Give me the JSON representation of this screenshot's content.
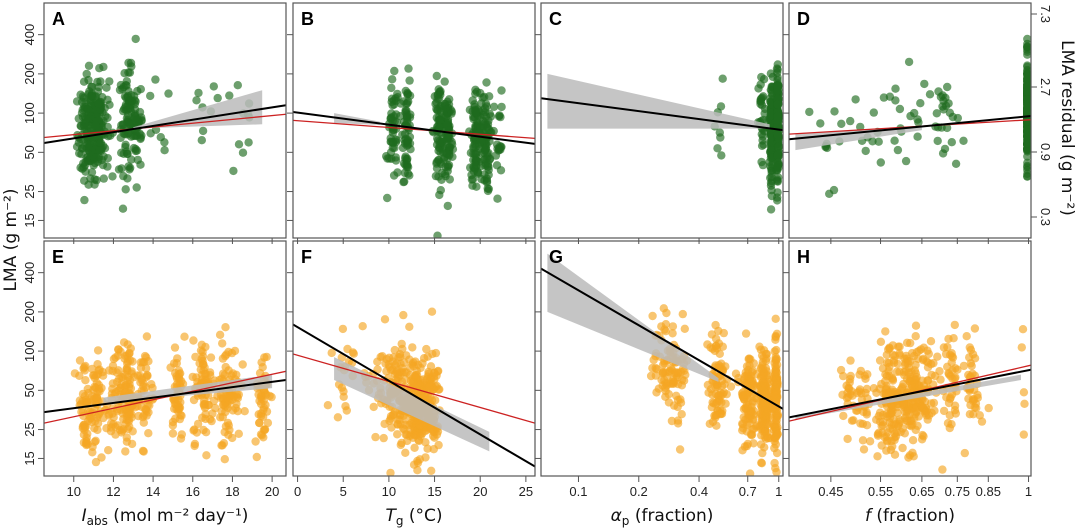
{
  "chart_data": {
    "type": "scatter",
    "title": "",
    "y_axis": {
      "label": "LMA (g m⁻²)",
      "scale": "log",
      "ticks": [
        15,
        25,
        50,
        100,
        200,
        400
      ],
      "range": [
        11,
        700
      ]
    },
    "y_axis_right": {
      "label": "LMA residual (g m⁻²)",
      "scale": "log",
      "ticks": [
        "0.3",
        "0.9",
        "2.7",
        "7.3"
      ]
    },
    "colors": {
      "top_points": "#1e6b1e",
      "bottom_points": "#f5a623",
      "fit": "#000000",
      "fit_alt": "#cc2222",
      "ci": "#bbbbbb"
    },
    "columns": [
      {
        "xlabel_main": "I",
        "xlabel_sub": "abs",
        "xlabel_rest": " (mol m⁻² day⁻¹)",
        "xscale": "linear",
        "xrange": [
          8.5,
          20.7
        ],
        "ticks": [
          "10",
          "12",
          "14",
          "16",
          "18",
          "20"
        ],
        "tickvals": [
          10,
          12,
          14,
          16,
          18,
          20
        ]
      },
      {
        "xlabel_main": "T",
        "xlabel_sub": "g",
        "xlabel_rest": " (°C)",
        "xscale": "linear",
        "xrange": [
          -0.5,
          26
        ],
        "ticks": [
          "0",
          "5",
          "10",
          "15",
          "20",
          "25"
        ],
        "tickvals": [
          0,
          5,
          10,
          15,
          20,
          25
        ]
      },
      {
        "xlabel_main": "α",
        "xlabel_sub": "p",
        "xlabel_rest": " (fraction)",
        "xscale": "log",
        "xrange": [
          0.065,
          1.05
        ],
        "ticks": [
          "0.1",
          "0.2",
          "0.4",
          "0.7",
          "1"
        ],
        "tickvals": [
          0.1,
          0.2,
          0.4,
          0.7,
          1
        ]
      },
      {
        "xlabel_main": "f",
        "xlabel_sub": "",
        "xlabel_rest": " (fraction)",
        "xscale": "log",
        "xrange": [
          0.38,
          1.01
        ],
        "ticks": [
          "0.45",
          "0.55",
          "0.65",
          "0.75",
          "0.85",
          "1"
        ],
        "tickvals": [
          0.45,
          0.55,
          0.65,
          0.75,
          0.85,
          1
        ]
      }
    ],
    "panels": [
      {
        "id": "A",
        "row": 0,
        "col": 0,
        "group": "top",
        "fit": {
          "x": [
            8.5,
            20.7
          ],
          "y": [
            59,
            115
          ]
        },
        "fit_alt": {
          "x": [
            8.5,
            20.7
          ],
          "y": [
            65,
            98
          ]
        },
        "ci": {
          "x": [
            13,
            19.5
          ],
          "y_lo": [
            76,
            82
          ],
          "y_hi": [
            78,
            150
          ]
        },
        "clusters": [
          [
            10.6,
            70,
            0.35,
            60
          ],
          [
            10.9,
            75,
            0.35,
            90
          ],
          [
            11.3,
            80,
            0.4,
            110
          ],
          [
            12.7,
            85,
            0.35,
            80
          ],
          [
            13.2,
            85,
            0.3,
            40
          ],
          [
            14.2,
            70,
            0.6,
            8
          ],
          [
            16.5,
            90,
            0.8,
            8
          ],
          [
            18.5,
            70,
            0.8,
            10
          ]
        ]
      },
      {
        "id": "B",
        "row": 0,
        "col": 1,
        "group": "top",
        "fit": {
          "x": [
            -0.5,
            26
          ],
          "y": [
            102,
            58
          ]
        },
        "fit_alt": {
          "x": [
            -0.5,
            26
          ],
          "y": [
            88,
            64
          ]
        },
        "ci": {
          "x": [
            4,
            9
          ],
          "y_lo": [
            84,
            81
          ],
          "y_hi": [
            100,
            86
          ]
        },
        "clusters": [
          [
            10.5,
            70,
            0.5,
            50
          ],
          [
            12,
            75,
            0.4,
            60
          ],
          [
            15.5,
            70,
            0.5,
            80
          ],
          [
            16.5,
            70,
            0.4,
            70
          ],
          [
            19.5,
            65,
            0.4,
            80
          ],
          [
            20.5,
            60,
            0.5,
            80
          ],
          [
            22,
            60,
            0.4,
            20
          ]
        ]
      },
      {
        "id": "C",
        "row": 0,
        "col": 2,
        "group": "top",
        "fit": {
          "x": [
            0.065,
            1.05
          ],
          "y": [
            130,
            74
          ]
        },
        "fit_alt": null,
        "ci": {
          "x": [
            0.07,
            0.9
          ],
          "y_lo": [
            76,
            76
          ],
          "y_hi": [
            200,
            82
          ]
        },
        "clusters": [
          [
            0.5,
            70,
            0.05,
            8
          ],
          [
            0.83,
            80,
            0.03,
            30
          ],
          [
            0.92,
            75,
            0.015,
            120
          ],
          [
            0.99,
            80,
            0.01,
            150
          ]
        ]
      },
      {
        "id": "D",
        "row": 0,
        "col": 3,
        "group": "top",
        "fit": {
          "x": [
            0.38,
            1.01
          ],
          "y": [
            63,
            95
          ]
        },
        "fit_alt": {
          "x": [
            0.38,
            1.01
          ],
          "y": [
            69,
            89
          ]
        },
        "ci": {
          "x": [
            0.39,
            0.65
          ],
          "y_lo": [
            52,
            74
          ],
          "y_hi": [
            70,
            78
          ]
        },
        "clusters": [
          [
            0.45,
            70,
            0.05,
            15
          ],
          [
            0.55,
            80,
            0.05,
            15
          ],
          [
            0.65,
            90,
            0.05,
            15
          ],
          [
            0.72,
            85,
            0.03,
            20
          ],
          [
            1.0,
            100,
            0.002,
            200
          ]
        ]
      },
      {
        "id": "E",
        "row": 1,
        "col": 0,
        "group": "bottom",
        "fit": {
          "x": [
            8.5,
            20.7
          ],
          "y": [
            34,
            60
          ]
        },
        "fit_alt": {
          "x": [
            8.5,
            20.7
          ],
          "y": [
            28,
            70
          ]
        },
        "ci": {
          "x": [
            11.5,
            20
          ],
          "y_lo": [
            40,
            52
          ],
          "y_hi": [
            44,
            66
          ]
        },
        "clusters": [
          [
            10.6,
            38,
            0.3,
            50
          ],
          [
            11.1,
            40,
            0.3,
            50
          ],
          [
            12,
            40,
            0.3,
            40
          ],
          [
            12.7,
            45,
            0.3,
            90
          ],
          [
            13.6,
            50,
            0.35,
            50
          ],
          [
            15.2,
            50,
            0.3,
            50
          ],
          [
            16.6,
            50,
            0.5,
            80
          ],
          [
            17.8,
            50,
            0.5,
            80
          ],
          [
            19.5,
            45,
            0.3,
            50
          ]
        ]
      },
      {
        "id": "F",
        "row": 1,
        "col": 1,
        "group": "bottom",
        "fit": {
          "x": [
            -0.5,
            26
          ],
          "y": [
            160,
            13
          ]
        },
        "fit_alt": {
          "x": [
            -0.5,
            26
          ],
          "y": [
            95,
            28
          ]
        },
        "ci": {
          "x": [
            4,
            21
          ],
          "y_lo": [
            60,
            17
          ],
          "y_hi": [
            90,
            24
          ]
        },
        "clusters": [
          [
            5,
            70,
            1,
            20
          ],
          [
            11,
            45,
            1.3,
            100
          ],
          [
            13,
            38,
            1.2,
            160
          ],
          [
            14.5,
            40,
            1,
            80
          ],
          [
            9,
            60,
            1.5,
            30
          ]
        ]
      },
      {
        "id": "G",
        "row": 1,
        "col": 2,
        "group": "bottom",
        "fit": {
          "x": [
            0.065,
            1.05
          ],
          "y": [
            430,
            36
          ]
        },
        "fit_alt": null,
        "ci": {
          "x": [
            0.07,
            0.5
          ],
          "y_lo": [
            200,
            58
          ],
          "y_hi": [
            560,
            62
          ]
        },
        "clusters": [
          [
            0.27,
            80,
            0.03,
            60
          ],
          [
            0.32,
            70,
            0.03,
            40
          ],
          [
            0.5,
            60,
            0.05,
            80
          ],
          [
            0.7,
            45,
            0.05,
            100
          ],
          [
            0.85,
            40,
            0.04,
            150
          ],
          [
            0.97,
            40,
            0.02,
            120
          ]
        ]
      },
      {
        "id": "H",
        "row": 1,
        "col": 3,
        "group": "bottom",
        "fit": {
          "x": [
            0.38,
            1.01
          ],
          "y": [
            31,
            72
          ]
        },
        "fit_alt": {
          "x": [
            0.38,
            1.01
          ],
          "y": [
            29,
            78
          ]
        },
        "ci": {
          "x": [
            0.39,
            0.97
          ],
          "y_lo": [
            30,
            60
          ],
          "y_hi": [
            32,
            66
          ]
        },
        "clusters": [
          [
            0.5,
            40,
            0.03,
            50
          ],
          [
            0.57,
            45,
            0.03,
            120
          ],
          [
            0.62,
            45,
            0.03,
            120
          ],
          [
            0.66,
            48,
            0.03,
            60
          ],
          [
            0.73,
            55,
            0.02,
            40
          ],
          [
            0.8,
            55,
            0.02,
            40
          ],
          [
            0.98,
            52,
            0.005,
            5
          ]
        ]
      }
    ]
  }
}
